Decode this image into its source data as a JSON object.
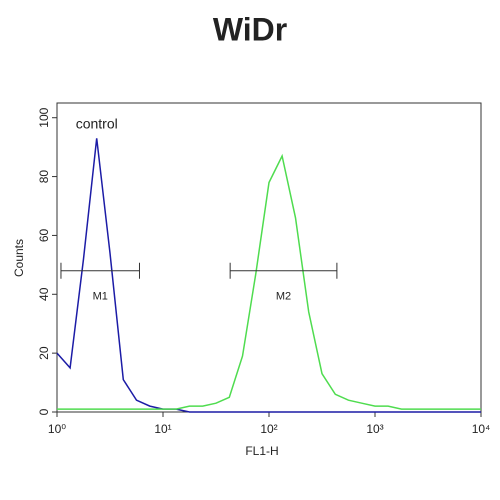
{
  "chart_data": {
    "type": "line",
    "title": "WiDr",
    "xlabel": "FL1-H",
    "ylabel": "Counts",
    "xscale": "log",
    "xlim": [
      1,
      10000
    ],
    "xticks": [
      {
        "value": 1,
        "label": "10⁰"
      },
      {
        "value": 10,
        "label": "10¹"
      },
      {
        "value": 100,
        "label": "10²"
      },
      {
        "value": 1000,
        "label": "10³"
      },
      {
        "value": 10000,
        "label": "10⁴"
      }
    ],
    "ylim": [
      0,
      105
    ],
    "yticks": [
      0,
      20,
      40,
      60,
      80,
      100
    ],
    "x": [
      1,
      1.33,
      1.78,
      2.37,
      3.16,
      4.22,
      5.62,
      7.5,
      10,
      13.3,
      17.8,
      23.7,
      31.6,
      42.2,
      56.2,
      75,
      100,
      133,
      178,
      237,
      316,
      422,
      562,
      750,
      1000,
      1330,
      1780,
      2370,
      3160,
      4220,
      5620,
      7500,
      10000
    ],
    "series": [
      {
        "name": "control",
        "color": "#1c1ca6",
        "values": [
          20,
          15,
          52,
          93,
          54,
          11,
          4,
          2,
          1,
          1,
          0,
          0,
          0,
          0,
          0,
          0,
          0,
          0,
          0,
          0,
          0,
          0,
          0,
          0,
          0,
          0,
          0,
          0,
          0,
          0,
          0,
          0,
          0
        ]
      },
      {
        "color": "#4fdc4f",
        "values": [
          1,
          1,
          1,
          1,
          1,
          1,
          1,
          1,
          1,
          1,
          2,
          2,
          3,
          5,
          19,
          47,
          78,
          87,
          66,
          34,
          13,
          6,
          4,
          3,
          2,
          2,
          1,
          1,
          1,
          1,
          1,
          1,
          1
        ]
      }
    ],
    "markers": [
      {
        "label": "M1",
        "range": [
          1.09,
          6.0
        ],
        "level": 48
      },
      {
        "label": "M2",
        "range": [
          43,
          437
        ],
        "level": 48
      }
    ]
  }
}
